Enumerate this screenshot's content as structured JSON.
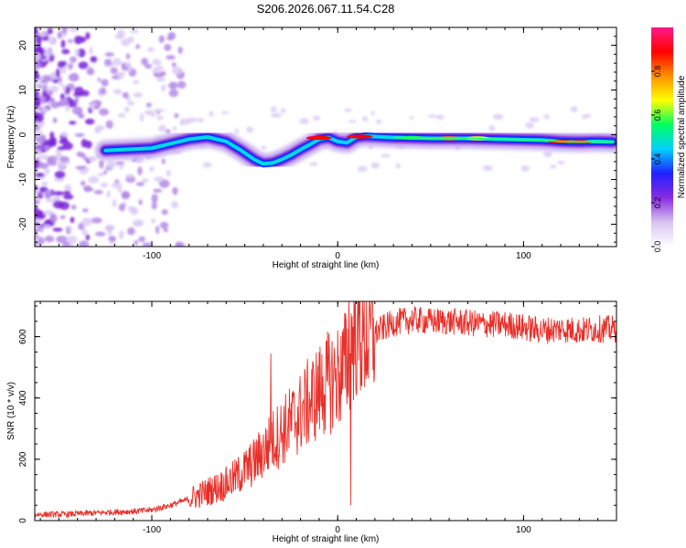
{
  "title": "S206.2026.067.11.54.C28",
  "chart_data": [
    {
      "type": "heatmap",
      "title": "S206.2026.067.11.54.C28",
      "xlabel": "Height of straight line (km)",
      "ylabel": "Frequency (Hz)",
      "xlim": [
        -163,
        150
      ],
      "ylim": [
        -25,
        24
      ],
      "xticks": [
        -100,
        0,
        100
      ],
      "xtick_labels": [
        "-100",
        "0",
        "100"
      ],
      "yticks": [
        -20,
        -10,
        0,
        10,
        20
      ],
      "ytick_labels": [
        "-20",
        "-10",
        "0",
        "10",
        "20"
      ],
      "ridge": {
        "x": [
          -125,
          -110,
          -100,
          -90,
          -80,
          -70,
          -60,
          -52,
          -45,
          -40,
          -35,
          -30,
          -25,
          -20,
          -15,
          -10,
          -5,
          0,
          5,
          10,
          15,
          20,
          30,
          40,
          50,
          60,
          70,
          80,
          90,
          100,
          110,
          120,
          130,
          140,
          148
        ],
        "y": [
          -3.5,
          -3.2,
          -3.0,
          -2.0,
          -1.0,
          -0.5,
          -1.5,
          -3.5,
          -5.5,
          -6.5,
          -6.3,
          -5.5,
          -4.5,
          -3.3,
          -2.2,
          -1.0,
          -0.6,
          -1.5,
          -1.8,
          -0.5,
          -0.3,
          -0.4,
          -0.6,
          -0.7,
          -0.8,
          -0.8,
          -0.8,
          -0.9,
          -1.0,
          -1.1,
          -1.2,
          -1.5,
          -1.6,
          -1.5,
          -1.6
        ]
      },
      "colorbar": {
        "label": "Normalized spectral amplitude",
        "range": [
          0,
          1
        ],
        "ticks": [
          0.0,
          0.2,
          0.4,
          0.6,
          0.8
        ],
        "tick_labels": [
          "0.0",
          "0.2",
          "0.4",
          "0.6",
          "0.8"
        ],
        "colors": [
          "#ffffff",
          "#d8c4f0",
          "#8a2be2",
          "#2020ff",
          "#00d0ff",
          "#00ff60",
          "#ffff00",
          "#ff9000",
          "#ff0000",
          "#ff1a8c"
        ]
      }
    },
    {
      "type": "line",
      "xlabel": "Height of straight line (km)",
      "ylabel": "SNR (10 * v/v)",
      "xlim": [
        -163,
        150
      ],
      "ylim": [
        0,
        715
      ],
      "xticks": [
        -100,
        0,
        100
      ],
      "xtick_labels": [
        "-100",
        "0",
        "100"
      ],
      "yticks": [
        0,
        200,
        400,
        600
      ],
      "ytick_labels": [
        "0",
        "200",
        "400",
        "600"
      ],
      "line_color": "#e8302a",
      "series": [
        {
          "name": "SNR",
          "x": [
            -163,
            -150,
            -140,
            -130,
            -120,
            -110,
            -100,
            -90,
            -80,
            -70,
            -60,
            -55,
            -50,
            -45,
            -40,
            -35,
            -30,
            -25,
            -20,
            -15,
            -10,
            -5,
            0,
            3,
            5,
            7,
            8,
            10,
            15,
            20,
            25,
            30,
            40,
            50,
            60,
            70,
            80,
            90,
            100,
            110,
            120,
            130,
            140,
            150
          ],
          "y": [
            20,
            20,
            22,
            25,
            28,
            30,
            35,
            50,
            70,
            95,
            120,
            140,
            165,
            190,
            225,
            260,
            290,
            320,
            350,
            390,
            420,
            450,
            470,
            490,
            520,
            560,
            600,
            620,
            600,
            610,
            630,
            645,
            655,
            650,
            650,
            645,
            640,
            640,
            630,
            620,
            625,
            620,
            625,
            625
          ]
        }
      ],
      "spikes": [
        {
          "x": -36,
          "y": 545
        },
        {
          "x": -8,
          "y": 470
        },
        {
          "x": 6,
          "y": 715
        },
        {
          "x": 7,
          "y": 50
        }
      ]
    }
  ]
}
